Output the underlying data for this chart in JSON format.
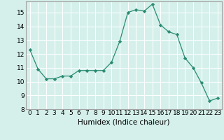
{
  "x": [
    0,
    1,
    2,
    3,
    4,
    5,
    6,
    7,
    8,
    9,
    10,
    11,
    12,
    13,
    14,
    15,
    16,
    17,
    18,
    19,
    20,
    21,
    22,
    23
  ],
  "y": [
    12.3,
    10.9,
    10.2,
    10.2,
    10.4,
    10.4,
    10.8,
    10.8,
    10.8,
    10.8,
    11.4,
    12.9,
    15.0,
    15.2,
    15.1,
    15.6,
    14.1,
    13.6,
    13.4,
    11.7,
    11.0,
    9.9,
    8.6,
    8.8
  ],
  "xlabel": "Humidex (Indice chaleur)",
  "ylim": [
    8,
    15.8
  ],
  "xlim": [
    -0.5,
    23.5
  ],
  "yticks": [
    8,
    9,
    10,
    11,
    12,
    13,
    14,
    15
  ],
  "xticks": [
    0,
    1,
    2,
    3,
    4,
    5,
    6,
    7,
    8,
    9,
    10,
    11,
    12,
    13,
    14,
    15,
    16,
    17,
    18,
    19,
    20,
    21,
    22,
    23
  ],
  "line_color": "#2a8b72",
  "marker": "D",
  "marker_size": 2.2,
  "bg_color": "#d5f0eb",
  "grid_color": "#ffffff",
  "xlabel_fontsize": 7.5,
  "tick_fontsize": 6.5,
  "spine_color": "#a0a0a0"
}
